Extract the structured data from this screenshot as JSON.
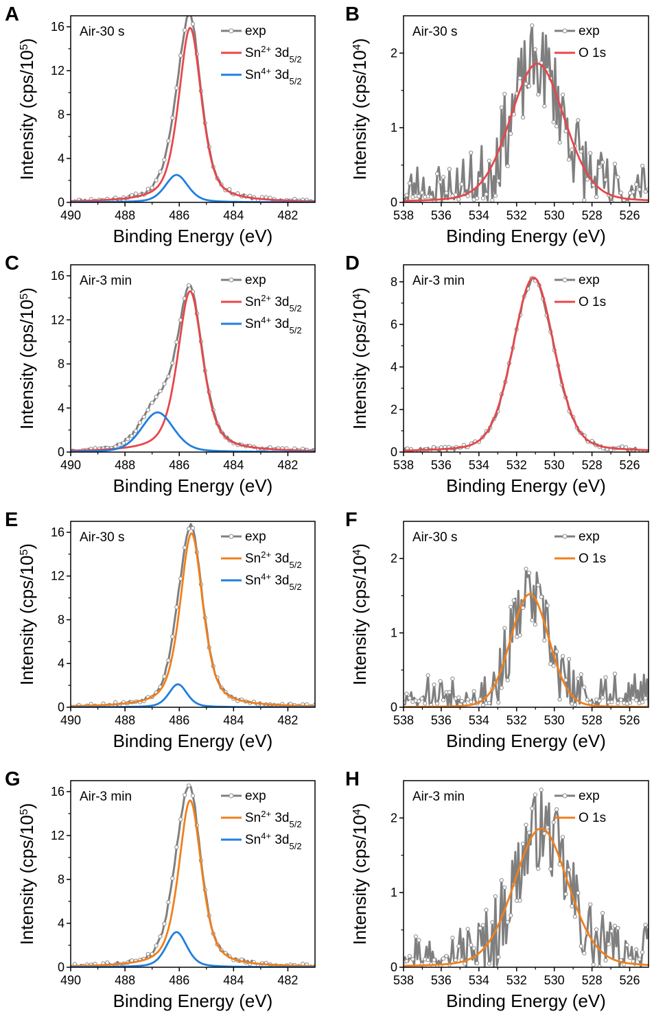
{
  "chart_data": [
    {
      "id": "A",
      "panel_letter": "A",
      "type": "line",
      "annotation": "Air-30 s",
      "xlabel": "Binding Energy (eV)",
      "ylabel": {
        "base": "Intensity (cps/10",
        "exponent": "5",
        "close": ")"
      },
      "xlim": [
        490,
        481
      ],
      "ylim": [
        0,
        17
      ],
      "xticks": [
        490,
        488,
        486,
        484,
        482
      ],
      "yticks": [
        0,
        4,
        8,
        12,
        16
      ],
      "legend": [
        {
          "key": "exp",
          "marker": true,
          "color": "#7f7f7f",
          "parts": [
            [
              "exp",
              ""
            ]
          ]
        },
        {
          "key": "sn2",
          "marker": false,
          "color": "#e8464a",
          "parts": [
            [
              "Sn",
              ""
            ],
            [
              "2+",
              "sup"
            ],
            [
              " 3d",
              ""
            ],
            [
              "5/2",
              "sub"
            ]
          ]
        },
        {
          "key": "sn4",
          "marker": false,
          "color": "#1f7fe0",
          "parts": [
            [
              "Sn",
              ""
            ],
            [
              "4+",
              "sup"
            ],
            [
              " 3d",
              ""
            ],
            [
              "5/2",
              "sub"
            ]
          ]
        }
      ],
      "series": [
        {
          "name": "exp",
          "kind": "exp",
          "color": "#7f7f7f",
          "x0": 490,
          "x1": 481,
          "n": 120,
          "noise": 0.18,
          "seed": 11,
          "peaks": [
            {
              "center": 485.6,
              "amp": 15.9,
              "fwhm": 1.0,
              "eta": 0.55
            },
            {
              "center": 486.1,
              "amp": 2.5,
              "fwhm": 1.0,
              "eta": 0.4
            }
          ]
        },
        {
          "name": "Sn2+ 3d5/2",
          "kind": "fit",
          "color": "#e8464a",
          "x0": 490,
          "x1": 481,
          "peaks": [
            {
              "center": 485.6,
              "amp": 15.9,
              "fwhm": 1.0,
              "eta": 0.55
            }
          ]
        },
        {
          "name": "Sn4+ 3d5/2",
          "kind": "fit",
          "color": "#1f7fe0",
          "x0": 490,
          "x1": 481,
          "peaks": [
            {
              "center": 486.1,
              "amp": 2.5,
              "fwhm": 1.0,
              "eta": 0.4
            }
          ]
        }
      ]
    },
    {
      "id": "B",
      "panel_letter": "B",
      "type": "line",
      "annotation": "Air-30 s",
      "xlabel": "Binding Energy (eV)",
      "ylabel": {
        "base": "Intensity (cps/10",
        "exponent": "4",
        "close": ")"
      },
      "xlim": [
        538,
        525
      ],
      "ylim": [
        0,
        2.5
      ],
      "xticks": [
        538,
        536,
        534,
        532,
        530,
        528,
        526
      ],
      "yticks": [
        0,
        1,
        2
      ],
      "legend": [
        {
          "key": "exp",
          "marker": true,
          "color": "#7f7f7f",
          "parts": [
            [
              "exp",
              ""
            ]
          ]
        },
        {
          "key": "o1s",
          "marker": false,
          "color": "#e8464a",
          "parts": [
            [
              "O 1s",
              ""
            ]
          ]
        }
      ],
      "series": [
        {
          "name": "exp",
          "kind": "exp",
          "color": "#7f7f7f",
          "x0": 538,
          "x1": 525,
          "n": 160,
          "noise": 0.55,
          "seed": 23,
          "peaks": [
            {
              "center": 530.9,
              "amp": 1.86,
              "fwhm": 3.4,
              "eta": 0.2
            }
          ]
        },
        {
          "name": "O 1s",
          "kind": "fit",
          "color": "#e8464a",
          "x0": 538,
          "x1": 525,
          "peaks": [
            {
              "center": 530.9,
              "amp": 1.86,
              "fwhm": 3.4,
              "eta": 0.2
            }
          ]
        }
      ]
    },
    {
      "id": "C",
      "panel_letter": "C",
      "type": "line",
      "annotation": "Air-3 min",
      "xlabel": "Binding Energy (eV)",
      "ylabel": {
        "base": "Intensity (cps/10",
        "exponent": "5",
        "close": ")"
      },
      "xlim": [
        490,
        481
      ],
      "ylim": [
        0,
        17
      ],
      "xticks": [
        490,
        488,
        486,
        484,
        482
      ],
      "yticks": [
        0,
        4,
        8,
        12,
        16
      ],
      "legend": [
        {
          "key": "exp",
          "marker": true,
          "color": "#7f7f7f",
          "parts": [
            [
              "exp",
              ""
            ]
          ]
        },
        {
          "key": "sn2",
          "marker": false,
          "color": "#e8464a",
          "parts": [
            [
              "Sn",
              ""
            ],
            [
              "2+",
              "sup"
            ],
            [
              " 3d",
              ""
            ],
            [
              "5/2",
              "sub"
            ]
          ]
        },
        {
          "key": "sn4",
          "marker": false,
          "color": "#1f7fe0",
          "parts": [
            [
              "Sn",
              ""
            ],
            [
              "4+",
              "sup"
            ],
            [
              " 3d",
              ""
            ],
            [
              "5/2",
              "sub"
            ]
          ]
        }
      ],
      "series": [
        {
          "name": "exp",
          "kind": "exp",
          "color": "#7f7f7f",
          "x0": 490,
          "x1": 481,
          "n": 120,
          "noise": 0.15,
          "seed": 37,
          "peaks": [
            {
              "center": 485.6,
              "amp": 14.6,
              "fwhm": 1.1,
              "eta": 0.55
            },
            {
              "center": 486.8,
              "amp": 3.6,
              "fwhm": 1.4,
              "eta": 0.3
            }
          ]
        },
        {
          "name": "Sn2+ 3d5/2",
          "kind": "fit",
          "color": "#e8464a",
          "x0": 490,
          "x1": 481,
          "peaks": [
            {
              "center": 485.6,
              "amp": 14.6,
              "fwhm": 1.1,
              "eta": 0.55
            }
          ]
        },
        {
          "name": "Sn4+ 3d5/2",
          "kind": "fit",
          "color": "#1f7fe0",
          "x0": 490,
          "x1": 481,
          "peaks": [
            {
              "center": 486.8,
              "amp": 3.6,
              "fwhm": 1.4,
              "eta": 0.3
            }
          ]
        }
      ]
    },
    {
      "id": "D",
      "panel_letter": "D",
      "type": "line",
      "annotation": "Air-3 min",
      "xlabel": "Binding Energy (eV)",
      "ylabel": {
        "base": "Intensity (cps/10",
        "exponent": "4",
        "close": ")"
      },
      "xlim": [
        538,
        525
      ],
      "ylim": [
        0,
        8.8
      ],
      "xticks": [
        538,
        536,
        534,
        532,
        530,
        528,
        526
      ],
      "yticks": [
        0,
        2,
        4,
        6,
        8
      ],
      "legend": [
        {
          "key": "exp",
          "marker": true,
          "color": "#7f7f7f",
          "parts": [
            [
              "exp",
              ""
            ]
          ]
        },
        {
          "key": "o1s",
          "marker": false,
          "color": "#e8464a",
          "parts": [
            [
              "O 1s",
              ""
            ]
          ]
        }
      ],
      "series": [
        {
          "name": "exp",
          "kind": "exp",
          "color": "#7f7f7f",
          "x0": 538,
          "x1": 525,
          "n": 130,
          "noise": 0.12,
          "seed": 41,
          "peaks": [
            {
              "center": 531.1,
              "amp": 8.1,
              "fwhm": 2.6,
              "eta": 0.25
            }
          ]
        },
        {
          "name": "O 1s",
          "kind": "fit",
          "color": "#e8464a",
          "x0": 538,
          "x1": 525,
          "peaks": [
            {
              "center": 531.1,
              "amp": 8.2,
              "fwhm": 2.6,
              "eta": 0.25
            }
          ]
        }
      ]
    },
    {
      "id": "E",
      "panel_letter": "E",
      "type": "line",
      "annotation": "Air-30 s",
      "xlabel": "Binding Energy (eV)",
      "ylabel": {
        "base": "Intensity (cps/10",
        "exponent": "5",
        "close": ")"
      },
      "xlim": [
        490,
        481
      ],
      "ylim": [
        0,
        17
      ],
      "xticks": [
        490,
        488,
        486,
        484,
        482
      ],
      "yticks": [
        0,
        4,
        8,
        12,
        16
      ],
      "legend": [
        {
          "key": "exp",
          "marker": true,
          "color": "#7f7f7f",
          "parts": [
            [
              "exp",
              ""
            ]
          ]
        },
        {
          "key": "sn2",
          "marker": false,
          "color": "#f07f1c",
          "parts": [
            [
              "Sn",
              ""
            ],
            [
              "2+",
              "sup"
            ],
            [
              " 3d",
              ""
            ],
            [
              "5/2",
              "sub"
            ]
          ]
        },
        {
          "key": "sn4",
          "marker": false,
          "color": "#1f7fe0",
          "parts": [
            [
              "Sn",
              ""
            ],
            [
              "4+",
              "sup"
            ],
            [
              " 3d",
              ""
            ],
            [
              "5/2",
              "sub"
            ]
          ]
        }
      ],
      "series": [
        {
          "name": "exp",
          "kind": "exp",
          "color": "#7f7f7f",
          "x0": 490,
          "x1": 481,
          "n": 120,
          "noise": 0.18,
          "seed": 53,
          "peaks": [
            {
              "center": 485.55,
              "amp": 15.9,
              "fwhm": 1.0,
              "eta": 0.55
            },
            {
              "center": 486.05,
              "amp": 2.1,
              "fwhm": 0.8,
              "eta": 0.4
            }
          ]
        },
        {
          "name": "Sn2+ 3d5/2",
          "kind": "fit",
          "color": "#f07f1c",
          "x0": 490,
          "x1": 481,
          "peaks": [
            {
              "center": 485.55,
              "amp": 15.9,
              "fwhm": 1.0,
              "eta": 0.55
            }
          ]
        },
        {
          "name": "Sn4+ 3d5/2",
          "kind": "fit",
          "color": "#1f7fe0",
          "x0": 490,
          "x1": 481,
          "peaks": [
            {
              "center": 486.05,
              "amp": 2.1,
              "fwhm": 0.8,
              "eta": 0.4
            }
          ]
        }
      ]
    },
    {
      "id": "F",
      "panel_letter": "F",
      "type": "line",
      "annotation": "Air-30 s",
      "xlabel": "Binding Energy (eV)",
      "ylabel": {
        "base": "Intensity (cps/10",
        "exponent": "4",
        "close": ")"
      },
      "xlim": [
        538,
        525
      ],
      "ylim": [
        0,
        2.5
      ],
      "xticks": [
        538,
        536,
        534,
        532,
        530,
        528,
        526
      ],
      "yticks": [
        0,
        1,
        2
      ],
      "legend": [
        {
          "key": "exp",
          "marker": true,
          "color": "#7f7f7f",
          "parts": [
            [
              "exp",
              ""
            ]
          ]
        },
        {
          "key": "o1s",
          "marker": false,
          "color": "#f07f1c",
          "parts": [
            [
              "O 1s",
              ""
            ]
          ]
        }
      ],
      "series": [
        {
          "name": "exp",
          "kind": "exp",
          "color": "#7f7f7f",
          "x0": 538,
          "x1": 525,
          "n": 160,
          "noise": 0.45,
          "seed": 67,
          "peaks": [
            {
              "center": 531.3,
              "amp": 1.5,
              "fwhm": 2.4,
              "eta": 0.1
            }
          ]
        },
        {
          "name": "O 1s",
          "kind": "fit",
          "color": "#f07f1c",
          "x0": 538,
          "x1": 525,
          "peaks": [
            {
              "center": 531.3,
              "amp": 1.52,
              "fwhm": 2.4,
              "eta": 0.1
            }
          ]
        }
      ]
    },
    {
      "id": "G",
      "panel_letter": "G",
      "type": "line",
      "annotation": "Air-3 min",
      "xlabel": "Binding Energy (eV)",
      "ylabel": {
        "base": "Intensity (cps/10",
        "exponent": "5",
        "close": ")"
      },
      "xlim": [
        490,
        481
      ],
      "ylim": [
        0,
        17
      ],
      "xticks": [
        490,
        488,
        486,
        484,
        482
      ],
      "yticks": [
        0,
        4,
        8,
        12,
        16
      ],
      "legend": [
        {
          "key": "exp",
          "marker": true,
          "color": "#7f7f7f",
          "parts": [
            [
              "exp",
              ""
            ]
          ]
        },
        {
          "key": "sn2",
          "marker": false,
          "color": "#f07f1c",
          "parts": [
            [
              "Sn",
              ""
            ],
            [
              "2+",
              "sup"
            ],
            [
              " 3d",
              ""
            ],
            [
              "5/2",
              "sub"
            ]
          ]
        },
        {
          "key": "sn4",
          "marker": false,
          "color": "#1f7fe0",
          "parts": [
            [
              "Sn",
              ""
            ],
            [
              "4+",
              "sup"
            ],
            [
              " 3d",
              ""
            ],
            [
              "5/2",
              "sub"
            ]
          ]
        }
      ],
      "series": [
        {
          "name": "exp",
          "kind": "exp",
          "color": "#7f7f7f",
          "x0": 490,
          "x1": 481,
          "n": 120,
          "noise": 0.18,
          "seed": 79,
          "peaks": [
            {
              "center": 485.6,
              "amp": 15.2,
              "fwhm": 1.0,
              "eta": 0.55
            },
            {
              "center": 486.1,
              "amp": 3.2,
              "fwhm": 0.9,
              "eta": 0.4
            }
          ]
        },
        {
          "name": "Sn2+ 3d5/2",
          "kind": "fit",
          "color": "#f07f1c",
          "x0": 490,
          "x1": 481,
          "peaks": [
            {
              "center": 485.6,
              "amp": 15.2,
              "fwhm": 1.0,
              "eta": 0.55
            }
          ]
        },
        {
          "name": "Sn4+ 3d5/2",
          "kind": "fit",
          "color": "#1f7fe0",
          "x0": 490,
          "x1": 481,
          "peaks": [
            {
              "center": 486.1,
              "amp": 3.2,
              "fwhm": 0.9,
              "eta": 0.4
            }
          ]
        }
      ]
    },
    {
      "id": "H",
      "panel_letter": "H",
      "type": "line",
      "annotation": "Air-3 min",
      "xlabel": "Binding Energy (eV)",
      "ylabel": {
        "base": "Intensity (cps/10",
        "exponent": "4",
        "close": ")"
      },
      "xlim": [
        538,
        525
      ],
      "ylim": [
        0,
        2.5
      ],
      "xticks": [
        538,
        536,
        534,
        532,
        530,
        528,
        526
      ],
      "yticks": [
        0,
        1,
        2
      ],
      "legend": [
        {
          "key": "exp",
          "marker": true,
          "color": "#7f7f7f",
          "parts": [
            [
              "exp",
              ""
            ]
          ]
        },
        {
          "key": "o1s",
          "marker": false,
          "color": "#f07f1c",
          "parts": [
            [
              "O 1s",
              ""
            ]
          ]
        }
      ],
      "series": [
        {
          "name": "exp",
          "kind": "exp",
          "color": "#7f7f7f",
          "x0": 538,
          "x1": 525,
          "n": 160,
          "noise": 0.55,
          "seed": 97,
          "peaks": [
            {
              "center": 530.7,
              "amp": 1.86,
              "fwhm": 3.4,
              "eta": 0.2
            }
          ]
        },
        {
          "name": "O 1s",
          "kind": "fit",
          "color": "#f07f1c",
          "x0": 538,
          "x1": 525,
          "peaks": [
            {
              "center": 530.7,
              "amp": 1.86,
              "fwhm": 3.4,
              "eta": 0.2
            }
          ]
        }
      ]
    }
  ]
}
